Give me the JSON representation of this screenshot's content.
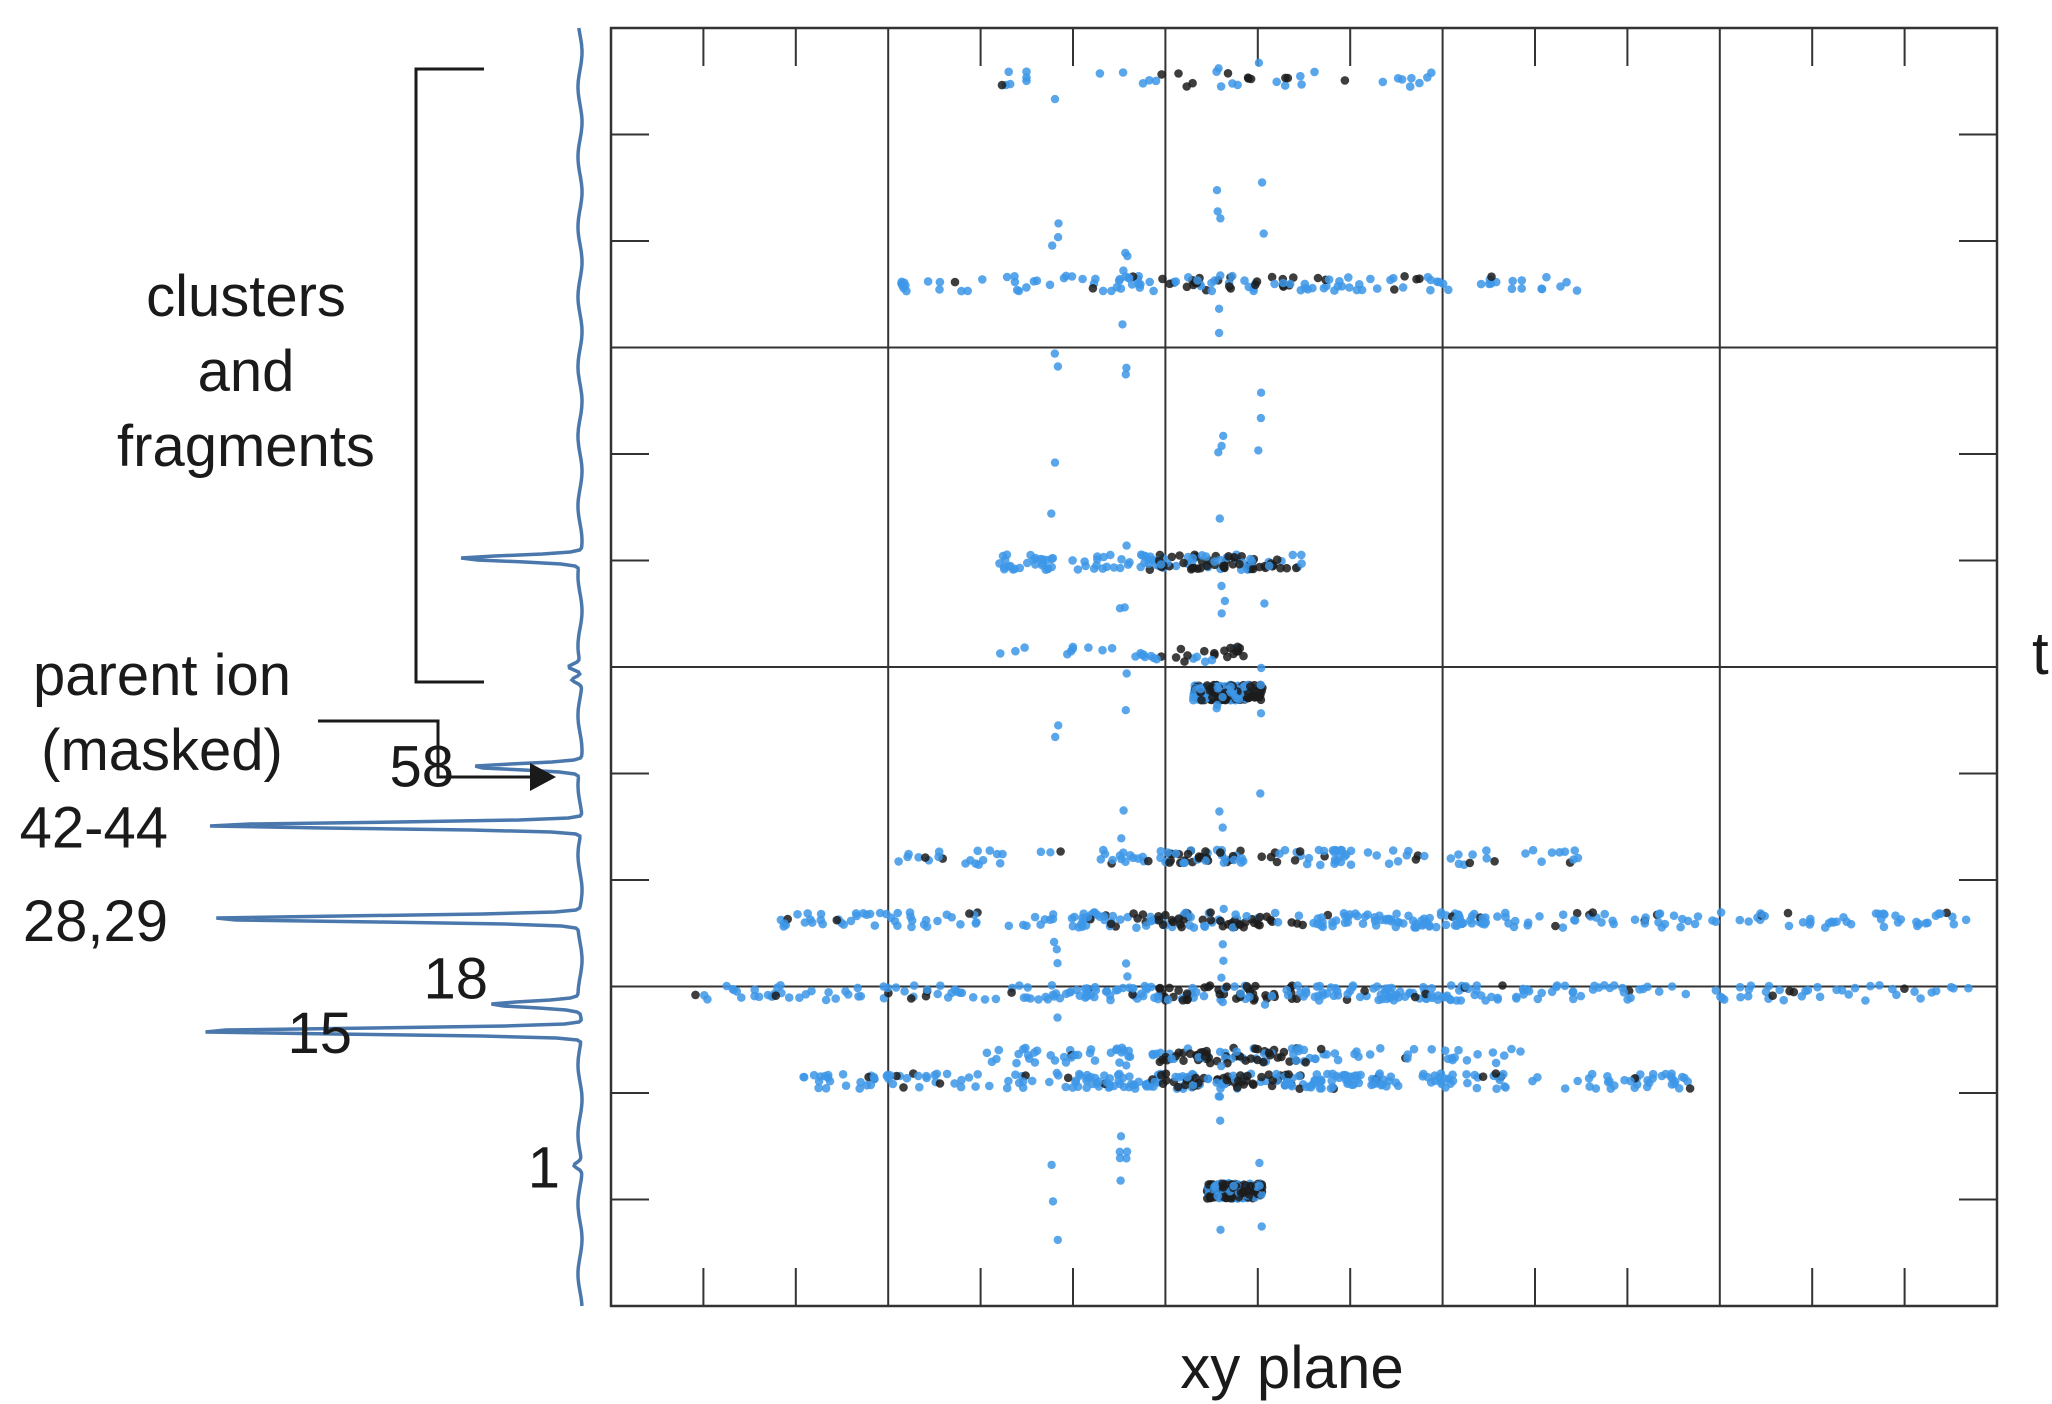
{
  "chart_data": {
    "type": "scatter",
    "title": "",
    "xlabel": "xy plane",
    "ylabel": "t",
    "grid": true,
    "colors": {
      "points": "#3d97e8",
      "dense_points": "#1c1c1c",
      "spectrum": "#4a78ad",
      "axes": "#333333"
    },
    "side_annotations": {
      "clusters_label": [
        "clusters",
        "and",
        "fragments"
      ],
      "parent_label": [
        "parent ion",
        "(masked)"
      ]
    },
    "spectrum_peaks": [
      {
        "label": "1",
        "t": 0.11
      },
      {
        "label": "15",
        "t": 0.215
      },
      {
        "label": "18",
        "t": 0.236
      },
      {
        "label": "28,29",
        "t": 0.303
      },
      {
        "label": "42-44",
        "t": 0.376
      },
      {
        "label": "58",
        "t": 0.422
      }
    ],
    "point_rows": [
      {
        "t": 0.09,
        "xmin": 0.43,
        "xmax": 0.47,
        "density": "high"
      },
      {
        "t": 0.176,
        "xmin": 0.13,
        "xmax": 0.78,
        "density": "high"
      },
      {
        "t": 0.196,
        "xmin": 0.27,
        "xmax": 0.66,
        "density": "medium"
      },
      {
        "t": 0.245,
        "xmin": 0.06,
        "xmax": 0.98,
        "density": "high"
      },
      {
        "t": 0.302,
        "xmin": 0.12,
        "xmax": 0.98,
        "density": "high"
      },
      {
        "t": 0.351,
        "xmin": 0.2,
        "xmax": 0.7,
        "density": "medium"
      },
      {
        "t": 0.48,
        "xmin": 0.42,
        "xmax": 0.47,
        "density": "high"
      },
      {
        "t": 0.51,
        "xmin": 0.26,
        "xmax": 0.47,
        "density": "low"
      },
      {
        "t": 0.582,
        "xmin": 0.28,
        "xmax": 0.5,
        "density": "medium"
      },
      {
        "t": 0.8,
        "xmin": 0.2,
        "xmax": 0.7,
        "density": "medium"
      },
      {
        "t": 0.96,
        "xmin": 0.28,
        "xmax": 0.62,
        "density": "low"
      }
    ]
  }
}
